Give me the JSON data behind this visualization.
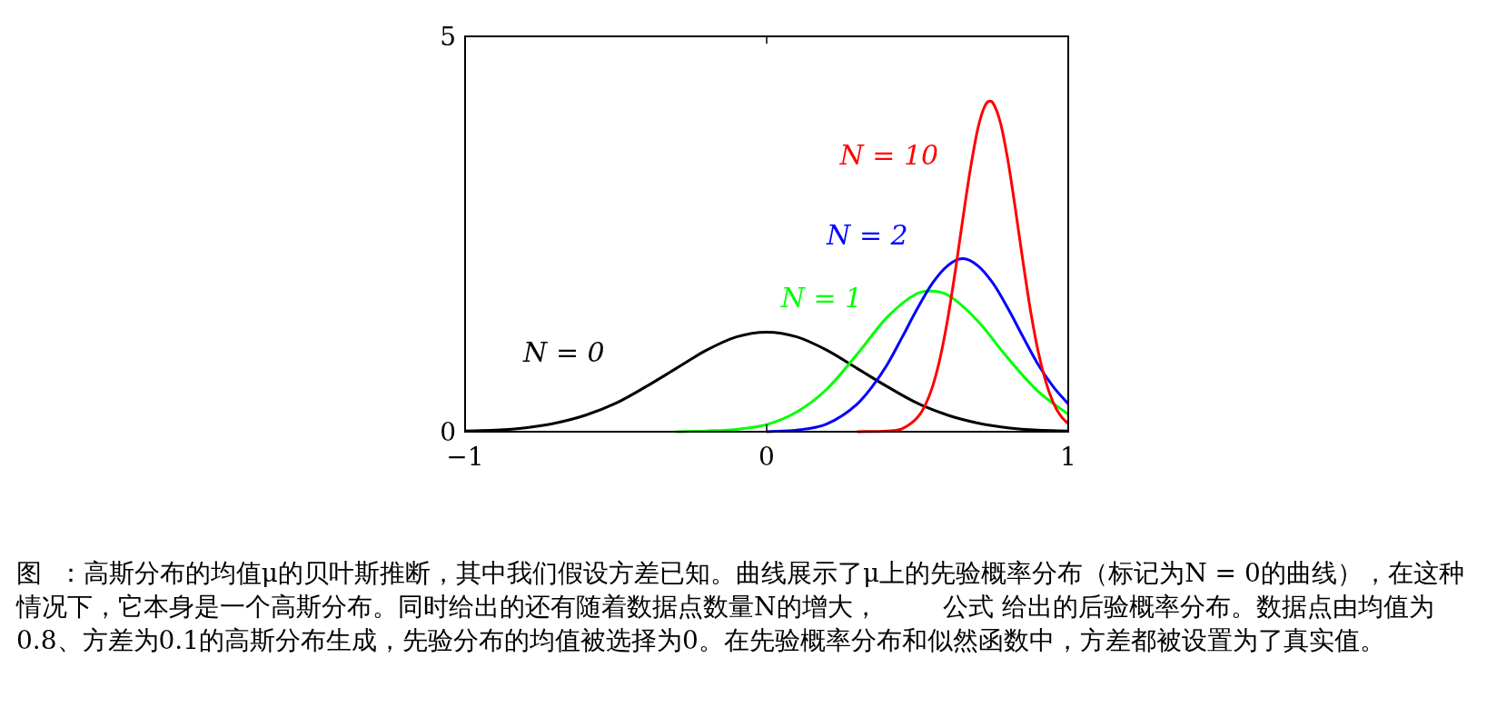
{
  "chart_data": {
    "type": "line",
    "xlim": [
      -1,
      1
    ],
    "ylim": [
      0,
      5
    ],
    "xticks": [
      -1,
      0,
      1
    ],
    "yticks": [
      0,
      5
    ],
    "grid": false,
    "marker": "none",
    "line_style": "solid",
    "series": [
      {
        "name": "N = 0",
        "color": "#000000",
        "x": [
          -1,
          -0.9,
          -0.8,
          -0.7,
          -0.6,
          -0.5,
          -0.4,
          -0.3,
          -0.2,
          -0.1,
          0,
          0.1,
          0.2,
          0.3,
          0.4,
          0.5,
          0.6,
          0.7,
          0.8,
          0.9,
          1
        ],
        "values": [
          0.01,
          0.02,
          0.05,
          0.11,
          0.21,
          0.36,
          0.57,
          0.8,
          1.03,
          1.2,
          1.26,
          1.2,
          1.03,
          0.8,
          0.57,
          0.36,
          0.21,
          0.11,
          0.05,
          0.02,
          0.01
        ]
      },
      {
        "name": "N = 1",
        "color": "#00ff00",
        "x": [
          -0.3,
          -0.2,
          -0.1,
          0,
          0.1,
          0.2,
          0.3,
          0.4,
          0.5,
          0.545,
          0.6,
          0.7,
          0.8,
          0.9,
          1
        ],
        "values": [
          0,
          0.01,
          0.03,
          0.09,
          0.25,
          0.54,
          0.98,
          1.45,
          1.75,
          1.78,
          1.73,
          1.4,
          0.93,
          0.51,
          0.22
        ]
      },
      {
        "name": "N = 2",
        "color": "#0000ff",
        "x": [
          0,
          0.1,
          0.2,
          0.3,
          0.35,
          0.4,
          0.45,
          0.5,
          0.55,
          0.6,
          0.65,
          0.7,
          0.75,
          0.8,
          0.85,
          0.9,
          0.95,
          1
        ],
        "values": [
          0,
          0.02,
          0.1,
          0.35,
          0.57,
          0.85,
          1.2,
          1.56,
          1.88,
          2.1,
          2.19,
          2.1,
          1.88,
          1.56,
          1.2,
          0.85,
          0.57,
          0.35
        ]
      },
      {
        "name": "N = 10",
        "color": "#ff0000",
        "x": [
          0.3,
          0.4,
          0.45,
          0.5,
          0.525,
          0.55,
          0.575,
          0.6,
          0.625,
          0.65,
          0.675,
          0.7,
          0.725,
          0.74,
          0.75,
          0.775,
          0.8,
          0.825,
          0.85,
          0.875,
          0.9,
          0.925,
          0.95,
          0.975,
          1
        ],
        "values": [
          0,
          0.01,
          0.04,
          0.18,
          0.33,
          0.57,
          0.93,
          1.42,
          2.02,
          2.68,
          3.31,
          3.83,
          4.13,
          4.18,
          4.16,
          3.91,
          3.43,
          2.81,
          2.15,
          1.53,
          1.02,
          0.64,
          0.37,
          0.2,
          0.1
        ]
      }
    ],
    "annotations": [
      "图  ：高斯分布的均值μ的贝叶斯推断，其中我们假设方差已知。曲线展示了μ上的先验概率分布（标记为N = 0的曲线），在这种情况下，它本身是一个高斯分布。同时给出的还有随着数据点数量N的增大，        公式 给出的后验概率分布。数据点由均值为0.8、方差为0.1的高斯分布生成，先验分布的均值被选择为0。在先验概率分布和似然函数中，方差都被设置为了真实值。"
    ]
  }
}
